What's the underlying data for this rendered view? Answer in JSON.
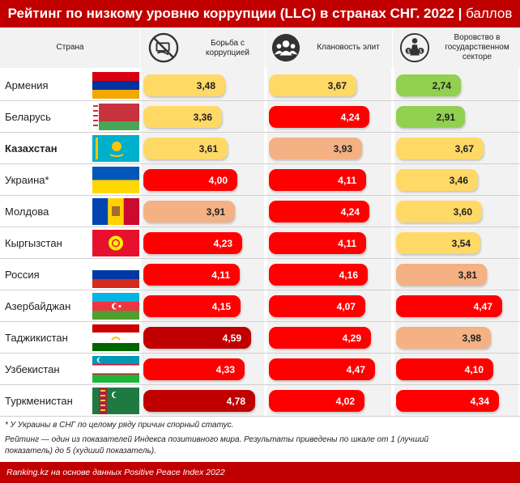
{
  "title": {
    "main": "Рейтинг по низкому уровню коррупции (LLC) в странах СНГ. 2022",
    "unit": "баллов"
  },
  "header": {
    "country_label": "Страна",
    "columns": [
      {
        "label": "Борьба с коррупцией",
        "icon": "no-bribe-icon"
      },
      {
        "label": "Клановость элит",
        "icon": "people-group-icon"
      },
      {
        "label": "Воровство в государственном секторе",
        "icon": "money-theft-icon"
      }
    ]
  },
  "chart_data": {
    "type": "bar",
    "scale": [
      1,
      5
    ],
    "categories": [
      "Армения",
      "Беларусь",
      "Казахстан",
      "Украина*",
      "Молдова",
      "Кыргызстан",
      "Россия",
      "Азербайджан",
      "Таджикистан",
      "Узбекистан",
      "Туркменистан"
    ],
    "highlight": "Казахстан",
    "series": [
      {
        "name": "Борьба с коррупцией",
        "values": [
          3.48,
          3.36,
          3.61,
          4.0,
          3.91,
          4.23,
          4.11,
          4.15,
          4.59,
          4.33,
          4.78
        ],
        "labels": [
          "3,48",
          "3,36",
          "3,61",
          "4,00",
          "3,91",
          "4,23",
          "4,11",
          "4,15",
          "4,59",
          "4,33",
          "4,78"
        ]
      },
      {
        "name": "Клановость элит",
        "values": [
          3.67,
          4.24,
          3.93,
          4.11,
          4.24,
          4.11,
          4.16,
          4.07,
          4.29,
          4.47,
          4.02
        ],
        "labels": [
          "3,67",
          "4,24",
          "3,93",
          "4,11",
          "4,24",
          "4,11",
          "4,16",
          "4,07",
          "4,29",
          "4,47",
          "4,02"
        ]
      },
      {
        "name": "Воровство в государственном секторе",
        "values": [
          2.74,
          2.91,
          3.67,
          3.46,
          3.6,
          3.54,
          3.81,
          4.47,
          3.98,
          4.1,
          4.34
        ],
        "labels": [
          "2,74",
          "2,91",
          "3,67",
          "3,46",
          "3,60",
          "3,54",
          "3,81",
          "4,47",
          "3,98",
          "4,10",
          "4,34"
        ]
      }
    ],
    "colors": {
      "green": "#92d050",
      "yellow": "#ffd966",
      "peach": "#f4b183",
      "red": "#ff0000",
      "darkred": "#c00000"
    }
  },
  "notes": [
    "* У Украины в СНГ по целому ряду причин спорный статус.",
    "Рейтинг — один из показателей Индекса позитивного мира. Результаты приведены по шкале от 1 (лучший",
    "показатель) до 5 (худший показатель)."
  ],
  "footer": "Ranking.kz на основе данных Positive Peace Index 2022"
}
